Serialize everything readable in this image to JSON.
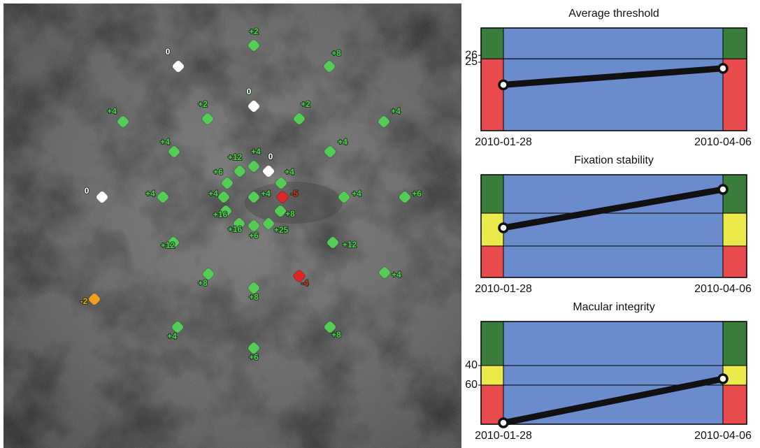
{
  "points": [
    {
      "label": "+2",
      "color": "#55cc55"
    },
    {
      "label": "0",
      "color": "#ffffff"
    },
    {
      "label": "+8",
      "color": "#55cc55"
    },
    {
      "label": "0",
      "color": "#ffffff"
    },
    {
      "label": "+2",
      "color": "#55cc55"
    },
    {
      "label": "+2",
      "color": "#55cc55"
    },
    {
      "label": "+4",
      "color": "#55cc55"
    },
    {
      "label": "+4",
      "color": "#55cc55"
    },
    {
      "label": "+4",
      "color": "#55cc55"
    },
    {
      "label": "+4",
      "color": "#55cc55"
    },
    {
      "label": "+4",
      "color": "#55cc55"
    },
    {
      "label": "+12",
      "color": "#55cc55"
    },
    {
      "label": "0",
      "color": "#ffffff"
    },
    {
      "label": "+6",
      "color": "#55cc55"
    },
    {
      "label": "+4",
      "color": "#55cc55"
    },
    {
      "label": "0",
      "color": "#ffffff"
    },
    {
      "label": "+4",
      "color": "#55cc55"
    },
    {
      "label": "+4",
      "color": "#55cc55"
    },
    {
      "label": "+4",
      "color": "#55cc55"
    },
    {
      "label": "-5",
      "color": "#e02525"
    },
    {
      "label": "+4",
      "color": "#55cc55"
    },
    {
      "label": "+6",
      "color": "#55cc55"
    },
    {
      "label": "+8",
      "color": "#55cc55"
    },
    {
      "label": "+16",
      "color": "#55cc55"
    },
    {
      "label": "+16",
      "color": "#55cc55"
    },
    {
      "label": "+6",
      "color": "#55cc55"
    },
    {
      "label": "+25",
      "color": "#55cc55"
    },
    {
      "label": "+12",
      "color": "#55cc55"
    },
    {
      "label": "+12",
      "color": "#55cc55"
    },
    {
      "label": "+8",
      "color": "#55cc55"
    },
    {
      "label": "-4",
      "color": "#e02525"
    },
    {
      "label": "+4",
      "color": "#55cc55"
    },
    {
      "label": "+8",
      "color": "#55cc55"
    },
    {
      "label": "-2",
      "color": "#f0a020"
    },
    {
      "label": "+4",
      "color": "#55cc55"
    },
    {
      "label": "+8",
      "color": "#55cc55"
    },
    {
      "label": "+6",
      "color": "#55cc55"
    }
  ],
  "chart_data": [
    {
      "type": "line",
      "title": "Average threshold",
      "categories": [
        "2010-01-28",
        "2010-04-06"
      ],
      "values": [
        21.7,
        24.1
      ],
      "ylim": [
        15,
        30
      ],
      "yticks": [
        25,
        26
      ],
      "zones": [
        {
          "from": 15,
          "to": 25.5,
          "color": "#e84b4b"
        },
        {
          "from": 25.5,
          "to": 30,
          "color": "#3a7d3a"
        }
      ],
      "background": "#6b8ccc",
      "line_color": "#111111"
    },
    {
      "type": "line",
      "title": "Fixation stability",
      "categories": [
        "2010-01-28",
        "2010-04-06"
      ],
      "values": [
        48.3,
        85.7
      ],
      "ylim": [
        0,
        100
      ],
      "yticks": [],
      "zones": [
        {
          "from": 0,
          "to": 30.6,
          "color": "#e84b4b"
        },
        {
          "from": 30.6,
          "to": 62.6,
          "color": "#ece94a"
        },
        {
          "from": 62.6,
          "to": 100,
          "color": "#3a7d3a"
        }
      ],
      "background": "#6b8ccc",
      "line_color": "#111111"
    },
    {
      "type": "line",
      "title": "Macular integrity",
      "categories": [
        "2010-01-28",
        "2010-04-06"
      ],
      "values": [
        98.6,
        53.6
      ],
      "ylim": [
        100,
        -5
      ],
      "yticks": [
        40,
        60
      ],
      "zones": [
        {
          "from": 60,
          "to": 100,
          "color": "#e84b4b"
        },
        {
          "from": 40,
          "to": 60,
          "color": "#ece94a"
        },
        {
          "from": -5,
          "to": 40,
          "color": "#3a7d3a"
        }
      ],
      "background": "#6b8ccc",
      "line_color": "#111111"
    }
  ]
}
